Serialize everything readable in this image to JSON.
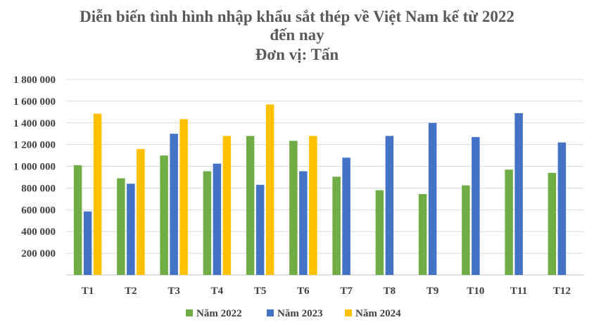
{
  "chart_data": {
    "type": "bar",
    "title_lines": [
      "Diễn biến tình hình nhập khẩu sắt thép về Việt Nam kể từ 2022",
      "đến nay",
      "Đơn vị: Tấn"
    ],
    "categories": [
      "T1",
      "T2",
      "T3",
      "T4",
      "T5",
      "T6",
      "T7",
      "T8",
      "T9",
      "T10",
      "T11",
      "T12"
    ],
    "series": [
      {
        "name": "Năm 2022",
        "color": "#70ad47",
        "values": [
          1010000,
          890000,
          1100000,
          955000,
          1280000,
          1235000,
          905000,
          780000,
          745000,
          825000,
          970000,
          940000
        ]
      },
      {
        "name": "Năm 2023",
        "color": "#4472c4",
        "values": [
          585000,
          840000,
          1300000,
          1025000,
          830000,
          955000,
          1080000,
          1280000,
          1400000,
          1270000,
          1490000,
          1220000
        ]
      },
      {
        "name": "Năm 2024",
        "color": "#ffc000",
        "values": [
          1485000,
          1160000,
          1435000,
          1280000,
          1570000,
          1280000,
          null,
          null,
          null,
          null,
          null,
          null
        ]
      }
    ],
    "y_ticks": [
      "",
      "200 000",
      "400 000",
      "600 000",
      "800 000",
      "1 000 000",
      "1 200 000",
      "1 400 000",
      "1 600 000",
      "1 800 000"
    ],
    "ylim": [
      0,
      1800000
    ],
    "grid": true,
    "legend_position": "bottom"
  }
}
